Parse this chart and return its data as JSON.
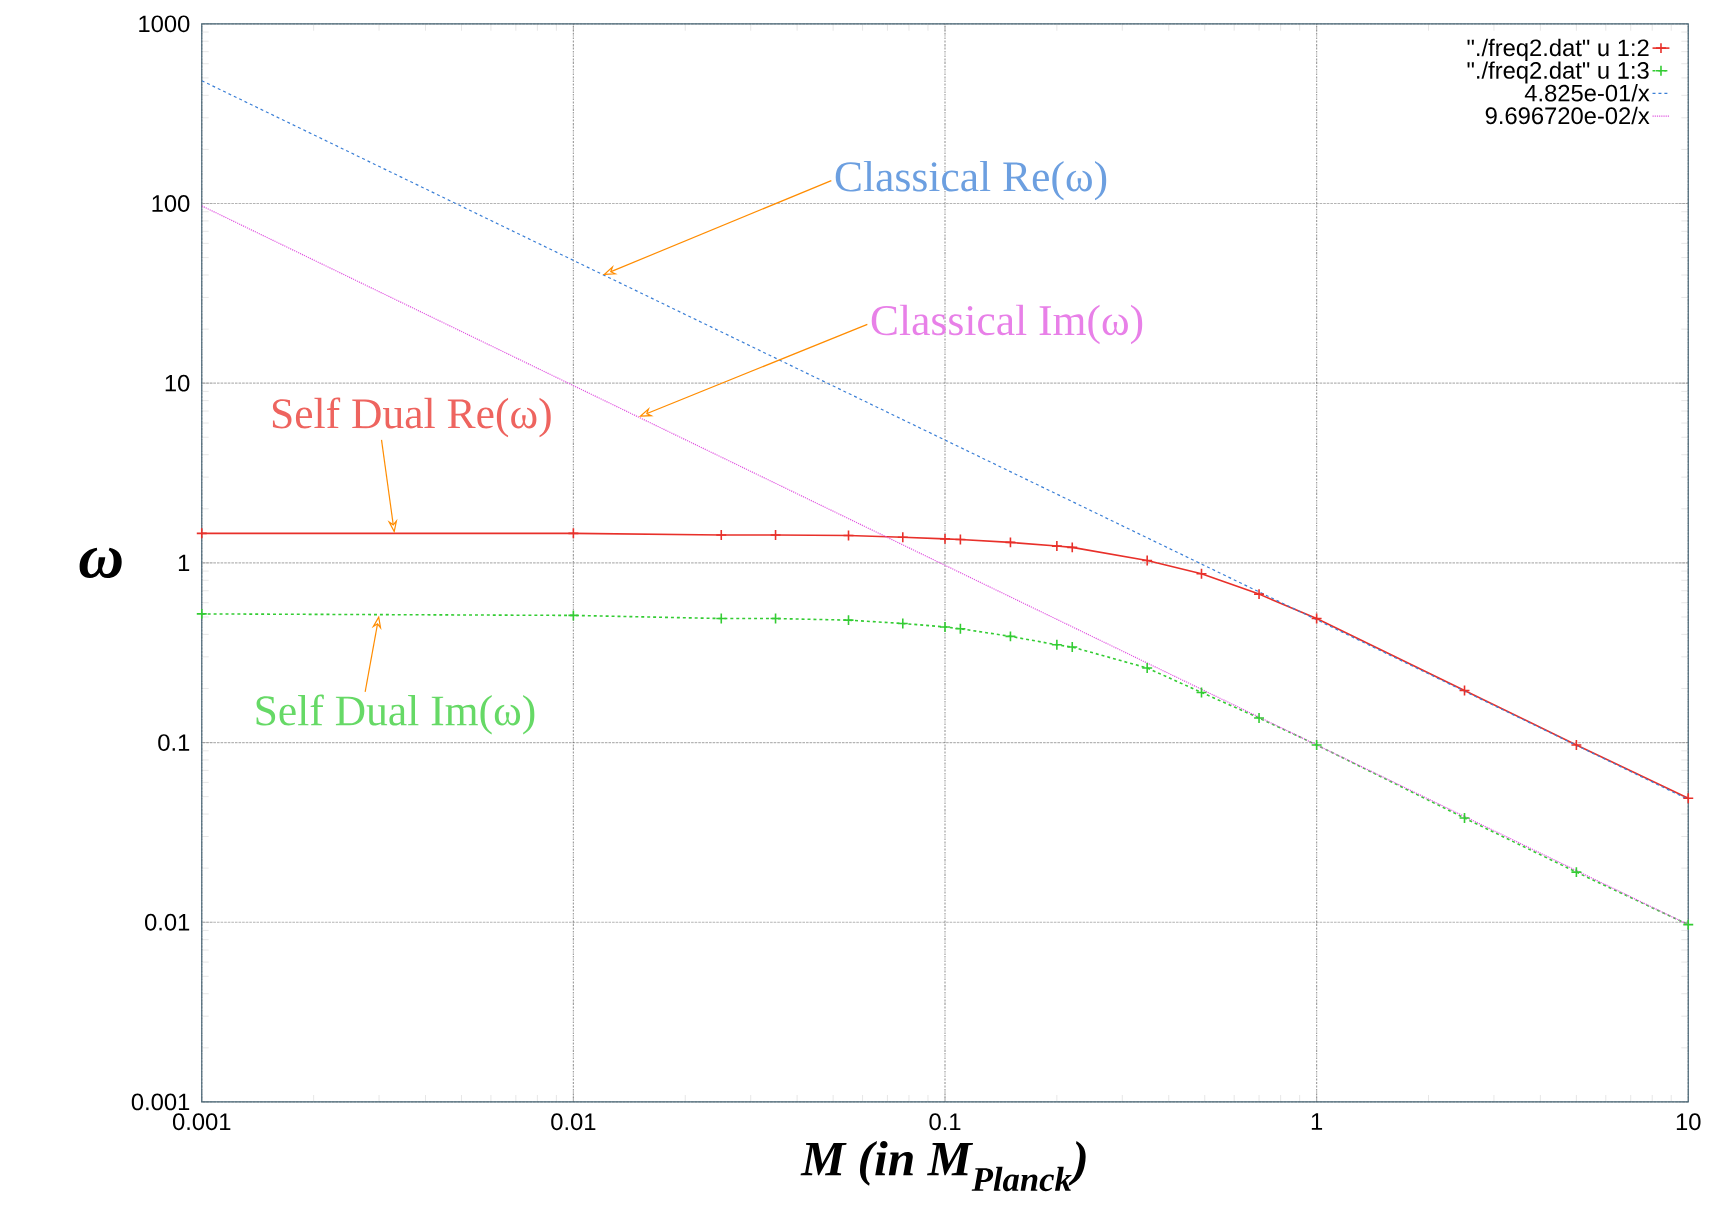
{
  "chart_data": {
    "type": "line",
    "xlabel": "M (in M$_{Planck}$)",
    "ylabel": "ω",
    "log": "xy",
    "grid": true,
    "legend": "top right",
    "xlim": [
      0.001,
      10
    ],
    "ylim": [
      0.001,
      1000
    ],
    "xticks": [
      0.001,
      0.01,
      0.1,
      1,
      10
    ],
    "yticks": [
      0.001,
      0.01,
      0.1,
      1,
      10,
      100,
      1000
    ],
    "series": [
      {
        "name": "\"./freq2.dat\" u 1:2",
        "color": "#e8302a",
        "marker": "cross",
        "line_style": "solid",
        "x": [
          0.001,
          0.01,
          0.025,
          0.035,
          0.055,
          0.077,
          0.1,
          0.11,
          0.15,
          0.2,
          0.22,
          0.35,
          0.49,
          0.7,
          1,
          2.5,
          5,
          10
        ],
        "values": [
          1.46,
          1.46,
          1.43,
          1.43,
          1.42,
          1.39,
          1.36,
          1.35,
          1.3,
          1.24,
          1.22,
          1.03,
          0.87,
          0.67,
          0.49,
          0.195,
          0.097,
          0.049
        ]
      },
      {
        "name": "\"./freq2.dat\" u 1:3",
        "color": "#33cc33",
        "marker": "cross",
        "line_style": "dashed",
        "x": [
          0.001,
          0.01,
          0.025,
          0.035,
          0.055,
          0.077,
          0.1,
          0.11,
          0.15,
          0.2,
          0.22,
          0.35,
          0.49,
          0.7,
          1,
          2.5,
          5,
          10
        ],
        "values": [
          0.52,
          0.51,
          0.49,
          0.49,
          0.48,
          0.46,
          0.44,
          0.43,
          0.39,
          0.35,
          0.34,
          0.26,
          0.19,
          0.137,
          0.097,
          0.038,
          0.019,
          0.0097
        ]
      },
      {
        "name": "4.825e-01/x",
        "color": "#3b7fd6",
        "marker": "none",
        "line_style": "dashed",
        "x": [
          0.001,
          10
        ],
        "values": [
          482.5,
          0.04825
        ]
      },
      {
        "name": "9.696720e-02/x",
        "color": "#e055e0",
        "marker": "none",
        "line_style": "dotted",
        "x": [
          0.001,
          10
        ],
        "values": [
          96.9672,
          0.00969672
        ]
      }
    ],
    "annotations": [
      {
        "text": "Classical Re(ω)",
        "x": 0.012,
        "y": 40
      },
      {
        "text": "Classical Im(ω)",
        "x": 0.015,
        "y": 6.5
      },
      {
        "text": "Self Dual Re(ω)",
        "x": 0.0033,
        "y": 1.46
      },
      {
        "text": "Self Dual Im(ω)",
        "x": 0.003,
        "y": 0.51
      }
    ]
  }
}
